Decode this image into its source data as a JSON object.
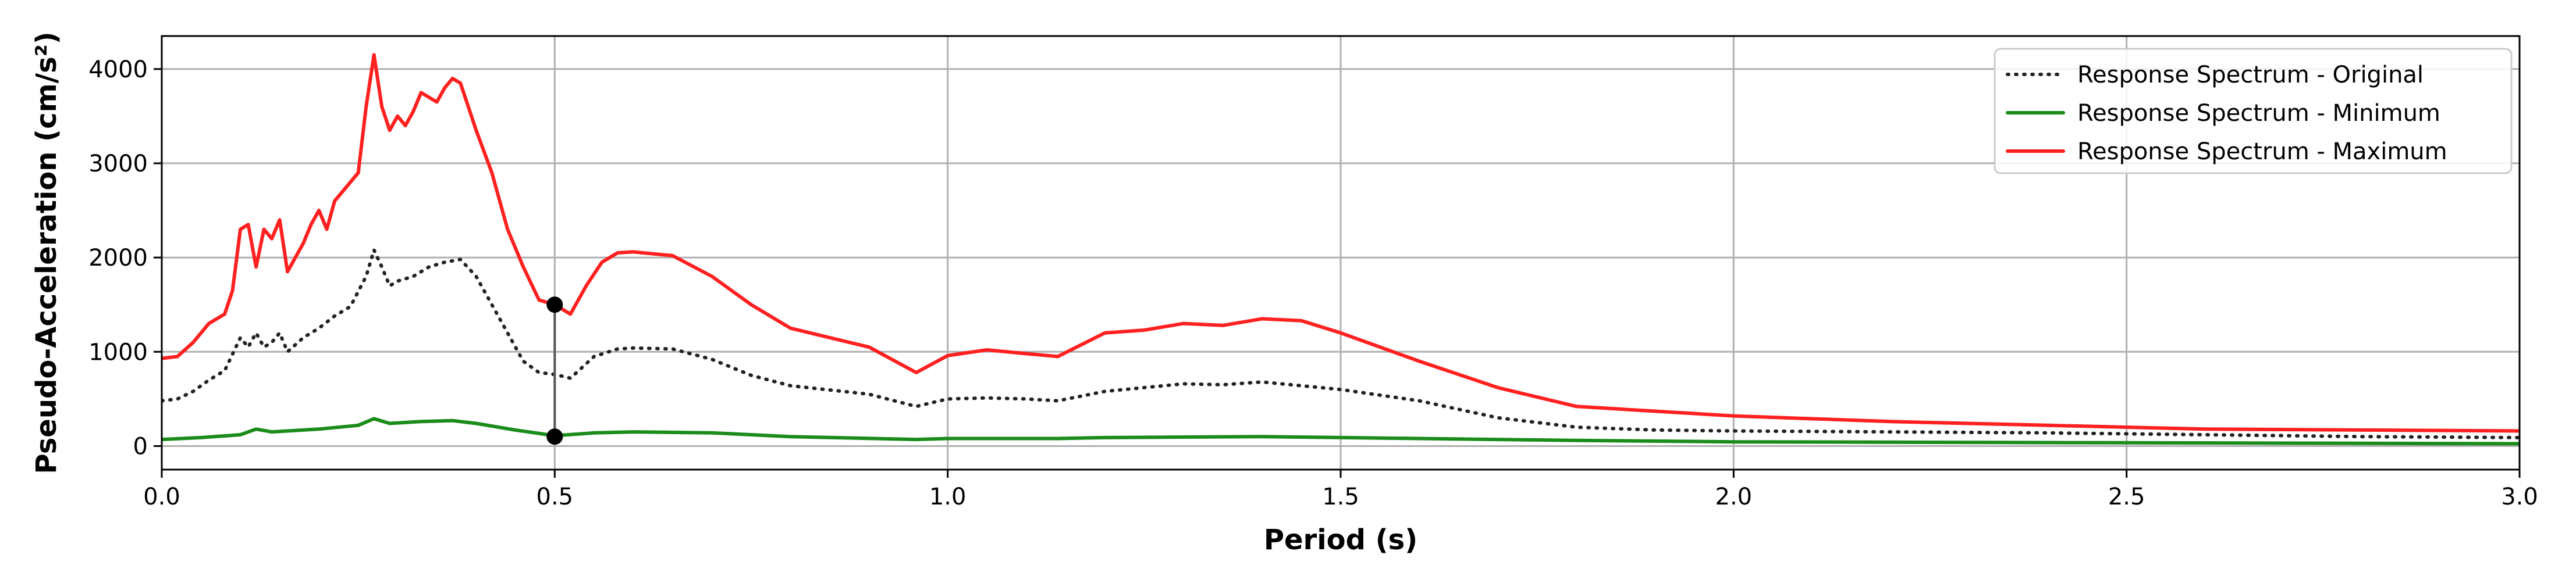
{
  "chart_data": {
    "type": "line",
    "title": "",
    "xlabel": "Period (s)",
    "ylabel": "Pseudo-Acceleration (cm/s²)",
    "xlim": [
      0,
      3.0
    ],
    "ylim": [
      -250,
      4350
    ],
    "xticks": [
      0.0,
      0.5,
      1.0,
      1.5,
      2.0,
      2.5,
      3.0
    ],
    "xtick_labels": [
      "0.0",
      "0.5",
      "1.0",
      "1.5",
      "2.0",
      "2.5",
      "3.0"
    ],
    "yticks": [
      0,
      1000,
      2000,
      3000,
      4000
    ],
    "ytick_labels": [
      "0",
      "1000",
      "2000",
      "3000",
      "4000"
    ],
    "grid": true,
    "legend_position": "top-right",
    "series": [
      {
        "name": "Response Spectrum - Original",
        "color": "#222222",
        "style": "dotted",
        "x": [
          0.0,
          0.02,
          0.04,
          0.06,
          0.08,
          0.1,
          0.11,
          0.12,
          0.13,
          0.14,
          0.15,
          0.16,
          0.18,
          0.2,
          0.22,
          0.24,
          0.26,
          0.27,
          0.28,
          0.29,
          0.3,
          0.32,
          0.34,
          0.36,
          0.38,
          0.4,
          0.42,
          0.44,
          0.46,
          0.48,
          0.5,
          0.52,
          0.55,
          0.58,
          0.6,
          0.65,
          0.7,
          0.75,
          0.8,
          0.9,
          0.96,
          1.0,
          1.05,
          1.1,
          1.14,
          1.2,
          1.3,
          1.35,
          1.4,
          1.5,
          1.6,
          1.7,
          1.8,
          1.9,
          2.0,
          2.2,
          2.4,
          2.6,
          2.8,
          3.0
        ],
        "y": [
          480,
          500,
          580,
          700,
          800,
          1150,
          1050,
          1200,
          1050,
          1100,
          1200,
          1000,
          1150,
          1250,
          1380,
          1480,
          1800,
          2080,
          1900,
          1700,
          1750,
          1800,
          1900,
          1950,
          1980,
          1800,
          1500,
          1200,
          900,
          780,
          760,
          720,
          950,
          1030,
          1040,
          1030,
          920,
          750,
          640,
          550,
          420,
          500,
          510,
          500,
          480,
          580,
          660,
          650,
          680,
          600,
          480,
          300,
          200,
          170,
          160,
          150,
          140,
          120,
          100,
          90
        ]
      },
      {
        "name": "Response Spectrum - Minimum",
        "color": "#1a8c1a",
        "style": "solid",
        "x": [
          0.0,
          0.05,
          0.1,
          0.12,
          0.14,
          0.16,
          0.2,
          0.25,
          0.27,
          0.29,
          0.33,
          0.37,
          0.4,
          0.45,
          0.5,
          0.55,
          0.6,
          0.7,
          0.8,
          0.96,
          1.0,
          1.14,
          1.2,
          1.4,
          1.6,
          1.8,
          2.0,
          2.5,
          3.0
        ],
        "y": [
          70,
          90,
          120,
          180,
          150,
          160,
          180,
          220,
          290,
          240,
          260,
          270,
          240,
          170,
          110,
          140,
          150,
          140,
          100,
          70,
          80,
          80,
          90,
          100,
          80,
          60,
          45,
          35,
          25
        ]
      },
      {
        "name": "Response Spectrum - Maximum",
        "color": "#ff2020",
        "style": "solid",
        "x": [
          0.0,
          0.02,
          0.04,
          0.05,
          0.06,
          0.07,
          0.08,
          0.09,
          0.1,
          0.11,
          0.12,
          0.13,
          0.14,
          0.15,
          0.16,
          0.18,
          0.19,
          0.2,
          0.21,
          0.22,
          0.24,
          0.25,
          0.26,
          0.27,
          0.28,
          0.29,
          0.3,
          0.31,
          0.32,
          0.33,
          0.34,
          0.35,
          0.36,
          0.37,
          0.38,
          0.39,
          0.4,
          0.42,
          0.44,
          0.46,
          0.48,
          0.5,
          0.52,
          0.54,
          0.56,
          0.58,
          0.6,
          0.65,
          0.7,
          0.75,
          0.8,
          0.85,
          0.9,
          0.96,
          1.0,
          1.05,
          1.1,
          1.14,
          1.2,
          1.25,
          1.3,
          1.35,
          1.4,
          1.45,
          1.5,
          1.6,
          1.7,
          1.8,
          1.9,
          2.0,
          2.2,
          2.4,
          2.6,
          2.8,
          3.0
        ],
        "y": [
          930,
          950,
          1100,
          1200,
          1300,
          1350,
          1400,
          1650,
          2300,
          2350,
          1900,
          2300,
          2200,
          2400,
          1850,
          2150,
          2350,
          2500,
          2300,
          2600,
          2800,
          2900,
          3600,
          4150,
          3600,
          3350,
          3500,
          3400,
          3550,
          3750,
          3700,
          3650,
          3800,
          3900,
          3850,
          3600,
          3350,
          2900,
          2300,
          1900,
          1550,
          1500,
          1400,
          1700,
          1950,
          2050,
          2060,
          2020,
          1800,
          1500,
          1250,
          1150,
          1050,
          780,
          960,
          1020,
          980,
          950,
          1200,
          1230,
          1300,
          1280,
          1350,
          1330,
          1200,
          900,
          620,
          420,
          370,
          320,
          260,
          220,
          180,
          170,
          160
        ]
      }
    ],
    "markers": [
      {
        "x": 0.5,
        "y": 1500
      },
      {
        "x": 0.5,
        "y": 100
      }
    ]
  }
}
